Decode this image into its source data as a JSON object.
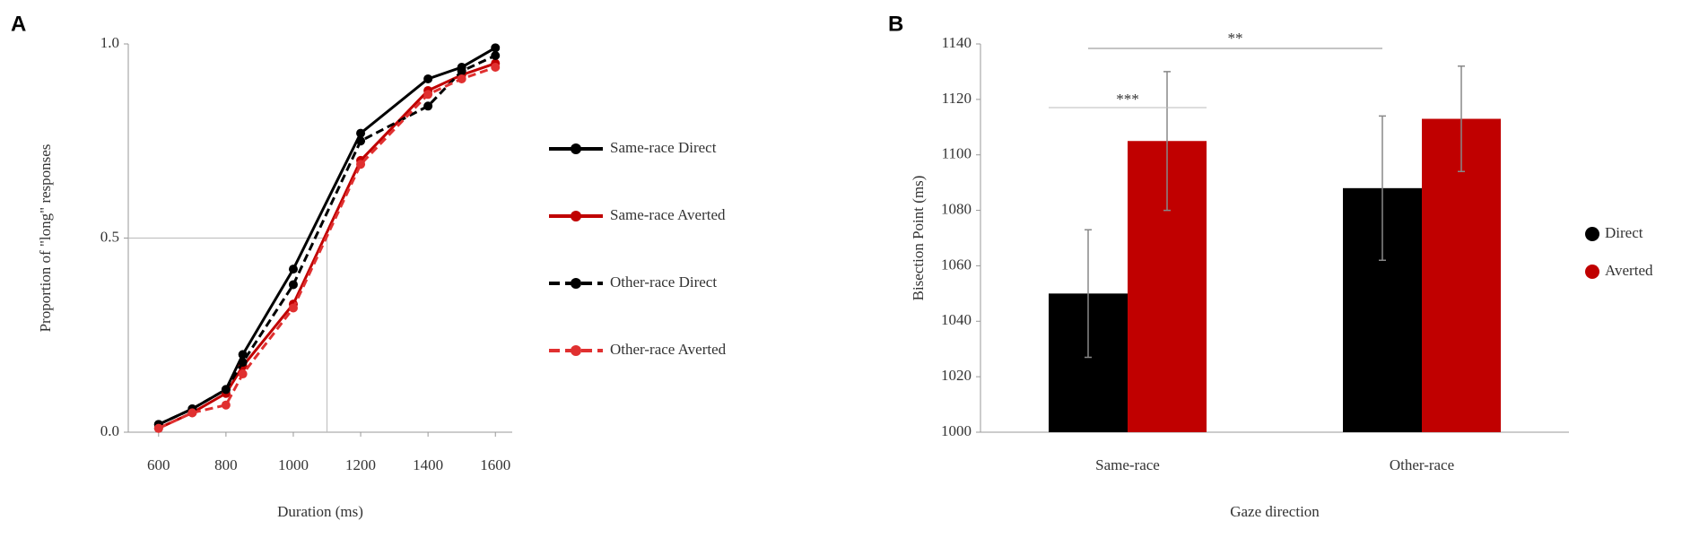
{
  "panels": [
    "A",
    "B"
  ],
  "chart_data": [
    {
      "type": "line",
      "x_label": "Duration (ms)",
      "y_label": "Proportion of \"long\" responses",
      "x": [
        600,
        700,
        800,
        850,
        1000,
        1200,
        1400,
        1500,
        1600
      ],
      "xlim": [
        510,
        1650
      ],
      "xticks": [
        600,
        800,
        1000,
        1200,
        1400,
        1600
      ],
      "ylim": [
        0,
        1
      ],
      "yticks": [
        {
          "value": 0,
          "label": "0.0"
        },
        0.5,
        {
          "value": 1,
          "label": "1.0"
        }
      ],
      "guide": {
        "x": 1100,
        "y": 0.5
      },
      "series": [
        {
          "name": "Same-race Direct",
          "color": "#000000",
          "dashed": false,
          "values": [
            0.02,
            0.06,
            0.11,
            0.2,
            0.42,
            0.77,
            0.91,
            0.94,
            0.99
          ]
        },
        {
          "name": "Same-race Averted",
          "color": "#c00000",
          "dashed": false,
          "values": [
            0.01,
            0.05,
            0.1,
            0.17,
            0.33,
            0.7,
            0.88,
            0.92,
            0.95
          ]
        },
        {
          "name": "Other-race Direct",
          "color": "#000000",
          "dashed": true,
          "values": [
            0.02,
            0.06,
            0.11,
            0.18,
            0.38,
            0.75,
            0.84,
            0.93,
            0.97
          ]
        },
        {
          "name": "Other-race Averted",
          "color": "#e03030",
          "dashed": true,
          "values": [
            0.01,
            0.05,
            0.07,
            0.15,
            0.32,
            0.69,
            0.87,
            0.91,
            0.94
          ]
        }
      ]
    },
    {
      "type": "bar",
      "x_label": "Gaze direction",
      "y_label": "Bisection Point (ms)",
      "categories": [
        "Same-race",
        "Other-race"
      ],
      "ylim": [
        1000,
        1140
      ],
      "yticks": [
        1000,
        1020,
        1040,
        1060,
        1080,
        1100,
        1120,
        1140
      ],
      "annotations": [
        "**",
        "***"
      ],
      "series": [
        {
          "name": "Direct",
          "color": "#000000",
          "values": [
            1050,
            1088
          ],
          "errors": [
            23,
            26
          ]
        },
        {
          "name": "Averted",
          "color": "#c00000",
          "values": [
            1105,
            1113
          ],
          "errors": [
            25,
            19
          ]
        }
      ]
    }
  ]
}
